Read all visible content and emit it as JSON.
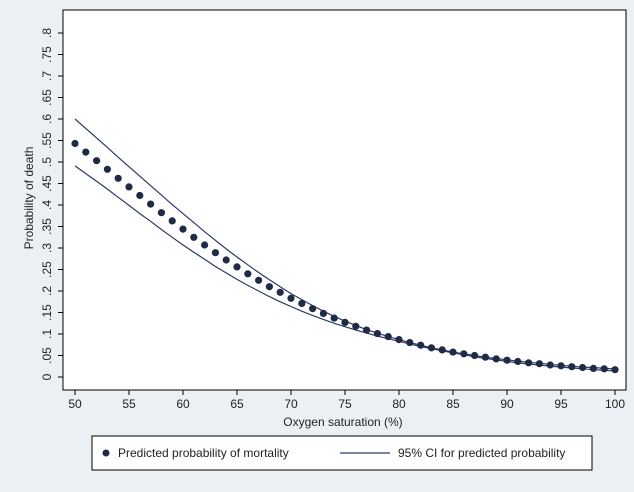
{
  "chart_data": {
    "type": "scatter",
    "title": "",
    "xlabel": "Oxygen saturation (%)",
    "ylabel": "Probability of death",
    "xlim": [
      50,
      100
    ],
    "ylim": [
      0,
      0.8
    ],
    "xticks": [
      "50",
      "55",
      "60",
      "65",
      "70",
      "75",
      "80",
      "85",
      "90",
      "95",
      "100"
    ],
    "xtick_values": [
      50,
      55,
      60,
      65,
      70,
      75,
      80,
      85,
      90,
      95,
      100
    ],
    "yticks": [
      "0",
      ".05",
      ".1",
      ".15",
      ".2",
      ".25",
      ".3",
      ".35",
      ".4",
      ".45",
      ".5",
      ".55",
      ".6",
      ".65",
      ".7",
      ".75",
      ".8"
    ],
    "ytick_values": [
      0,
      0.05,
      0.1,
      0.15,
      0.2,
      0.25,
      0.3,
      0.35,
      0.4,
      0.45,
      0.5,
      0.55,
      0.6,
      0.65,
      0.7,
      0.75,
      0.8
    ],
    "grid": false,
    "legend_position": "bottom",
    "series": [
      {
        "name": "Predicted probability of mortality",
        "kind": "points",
        "color": "#1f2a44",
        "x": [
          50,
          51,
          52,
          53,
          54,
          55,
          56,
          57,
          58,
          59,
          60,
          61,
          62,
          63,
          64,
          65,
          66,
          67,
          68,
          69,
          70,
          71,
          72,
          73,
          74,
          75,
          76,
          77,
          78,
          79,
          80,
          81,
          82,
          83,
          84,
          85,
          86,
          87,
          88,
          89,
          90,
          91,
          92,
          93,
          94,
          95,
          96,
          97,
          98,
          99,
          100
        ],
        "y": [
          0.543,
          0.523,
          0.503,
          0.483,
          0.462,
          0.442,
          0.422,
          0.402,
          0.382,
          0.363,
          0.344,
          0.325,
          0.307,
          0.289,
          0.272,
          0.256,
          0.24,
          0.225,
          0.21,
          0.197,
          0.183,
          0.171,
          0.159,
          0.148,
          0.137,
          0.127,
          0.118,
          0.109,
          0.101,
          0.094,
          0.087,
          0.08,
          0.074,
          0.068,
          0.063,
          0.058,
          0.054,
          0.05,
          0.046,
          0.042,
          0.039,
          0.036,
          0.033,
          0.031,
          0.028,
          0.026,
          0.024,
          0.022,
          0.02,
          0.019,
          0.017
        ]
      },
      {
        "name": "95% CI for predicted probability",
        "kind": "line",
        "color": "#2b3a67",
        "x": [
          50,
          51,
          52,
          53,
          54,
          55,
          56,
          57,
          58,
          59,
          60,
          61,
          62,
          63,
          64,
          65,
          66,
          67,
          68,
          69,
          70,
          71,
          72,
          73,
          74,
          75,
          76,
          77,
          78,
          79,
          80,
          81,
          82,
          83,
          84,
          85,
          86,
          87,
          88,
          89,
          90,
          91,
          92,
          93,
          94,
          95,
          96,
          97,
          98,
          99,
          100
        ],
        "upper": [
          0.6,
          0.578,
          0.556,
          0.534,
          0.511,
          0.489,
          0.467,
          0.445,
          0.423,
          0.401,
          0.38,
          0.359,
          0.338,
          0.318,
          0.298,
          0.279,
          0.261,
          0.243,
          0.226,
          0.21,
          0.194,
          0.18,
          0.166,
          0.153,
          0.141,
          0.13,
          0.12,
          0.11,
          0.102,
          0.094,
          0.087,
          0.08,
          0.074,
          0.068,
          0.063,
          0.058,
          0.054,
          0.05,
          0.046,
          0.043,
          0.04,
          0.037,
          0.034,
          0.032,
          0.029,
          0.027,
          0.025,
          0.023,
          0.022,
          0.02,
          0.019
        ],
        "lower": [
          0.491,
          0.473,
          0.455,
          0.437,
          0.418,
          0.399,
          0.38,
          0.362,
          0.343,
          0.325,
          0.307,
          0.29,
          0.274,
          0.257,
          0.242,
          0.227,
          0.213,
          0.2,
          0.187,
          0.175,
          0.164,
          0.153,
          0.143,
          0.134,
          0.125,
          0.117,
          0.109,
          0.102,
          0.095,
          0.089,
          0.083,
          0.077,
          0.071,
          0.066,
          0.061,
          0.056,
          0.052,
          0.047,
          0.043,
          0.04,
          0.036,
          0.033,
          0.03,
          0.028,
          0.025,
          0.023,
          0.021,
          0.019,
          0.017,
          0.016,
          0.014
        ]
      }
    ]
  }
}
